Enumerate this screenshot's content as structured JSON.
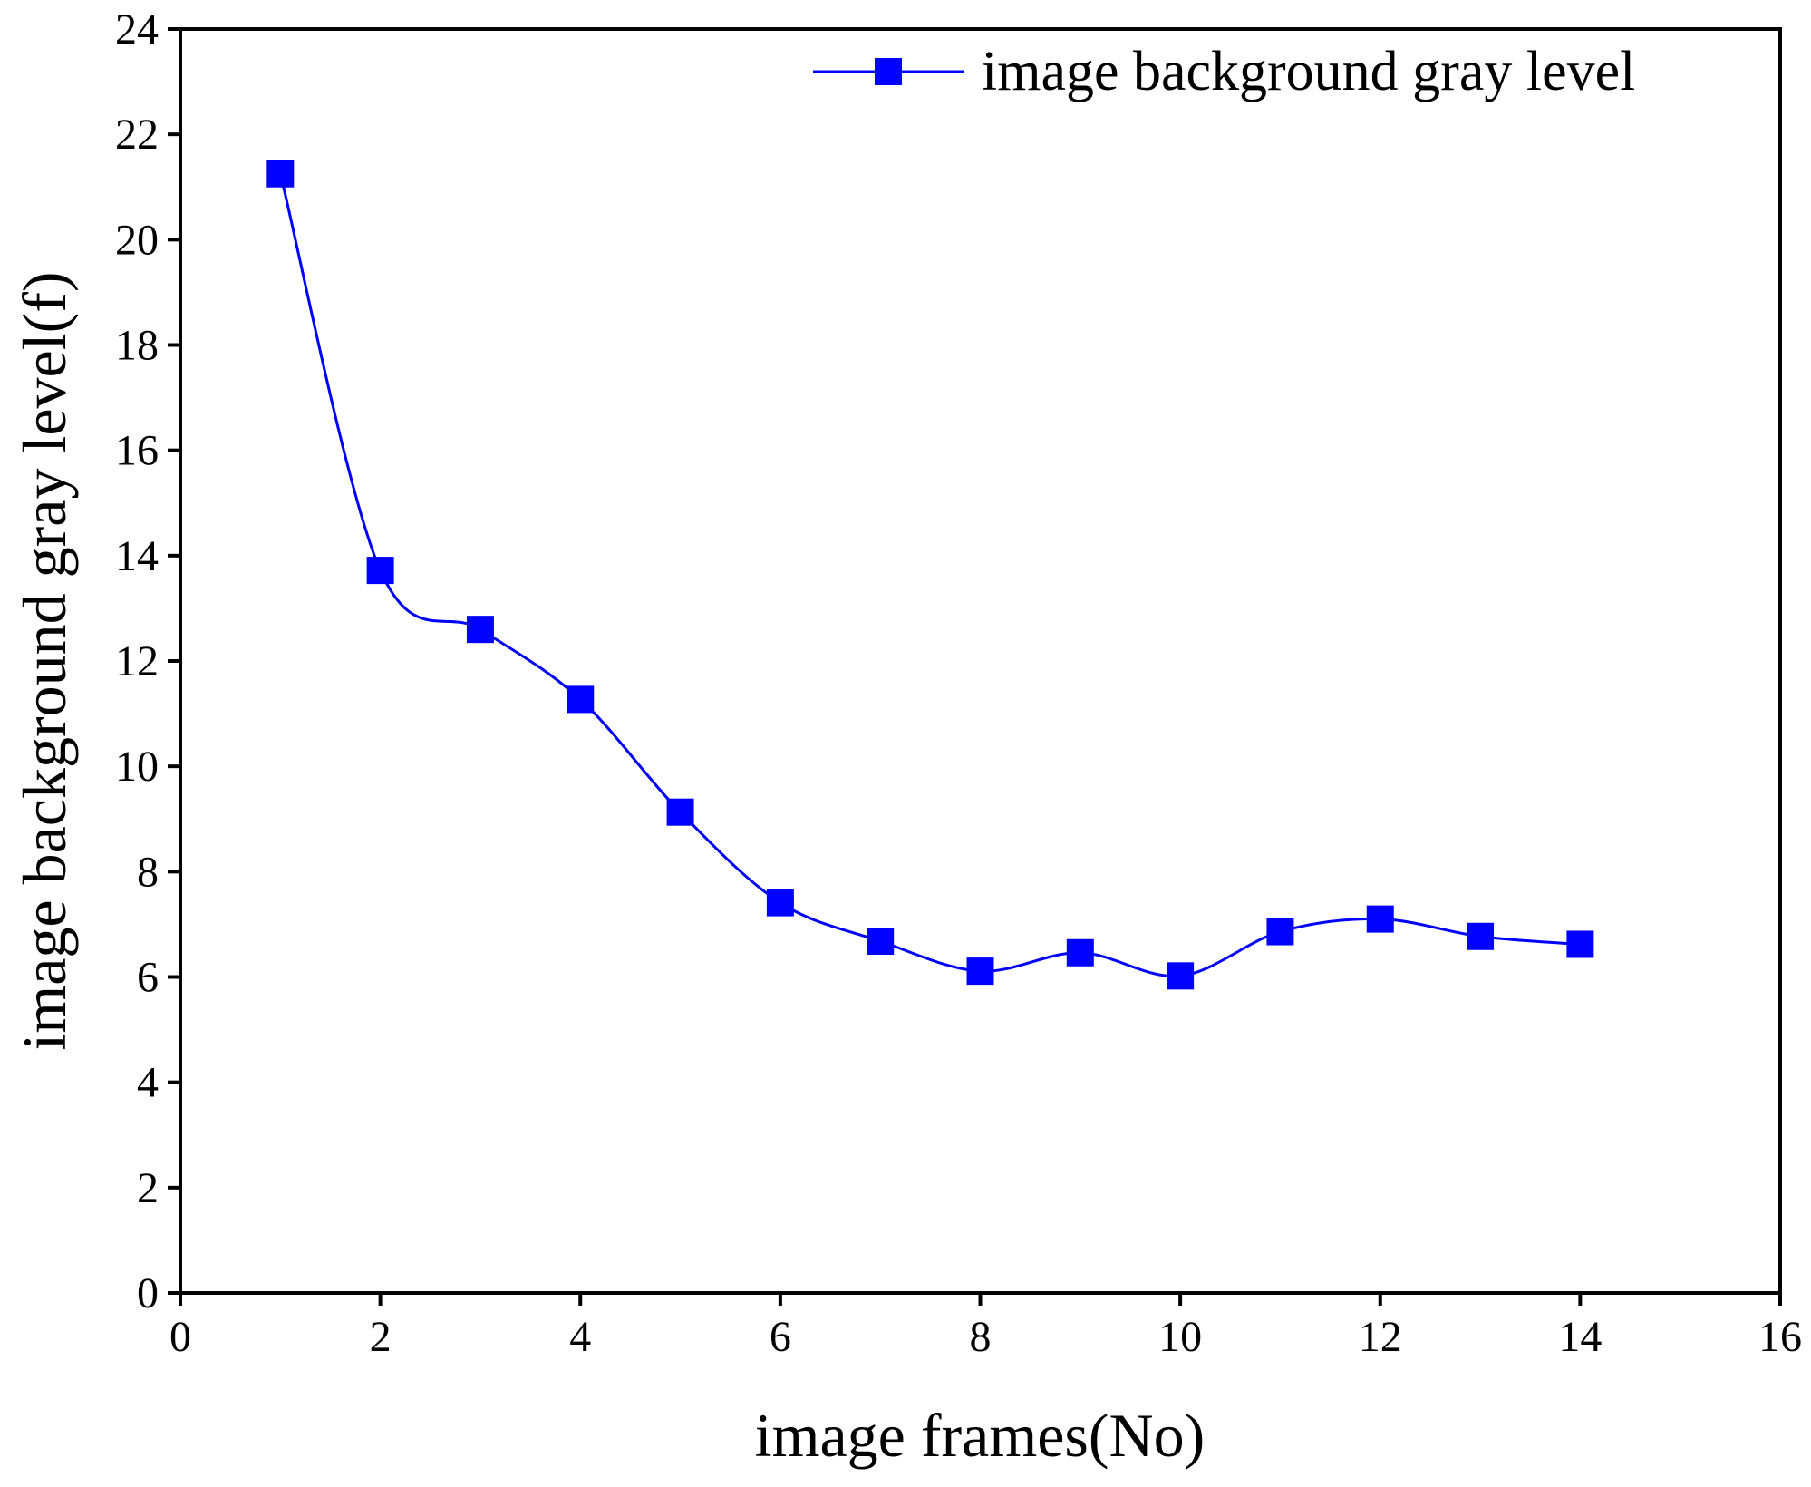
{
  "chart_data": {
    "type": "line",
    "x_label": "image frames(No)",
    "y_label": "image background gray level(f)",
    "x": [
      1,
      2,
      3,
      4,
      5,
      6,
      7,
      8,
      9,
      10,
      11,
      12,
      13,
      14
    ],
    "series": [
      {
        "name": "image background gray level",
        "color": "#0000ff",
        "values": [
          21.25,
          13.72,
          12.6,
          11.27,
          9.13,
          7.41,
          6.68,
          6.11,
          6.46,
          6.02,
          6.86,
          7.1,
          6.77,
          6.62
        ]
      }
    ],
    "xlim": [
      0,
      16
    ],
    "xticks": [
      0,
      2,
      4,
      6,
      8,
      10,
      12,
      14,
      16
    ],
    "ylim": [
      0,
      24
    ],
    "yticks": [
      0,
      2,
      4,
      6,
      8,
      10,
      12,
      14,
      16,
      18,
      20,
      22,
      24
    ],
    "grid": false,
    "legend": "top-right",
    "smooth": true
  }
}
